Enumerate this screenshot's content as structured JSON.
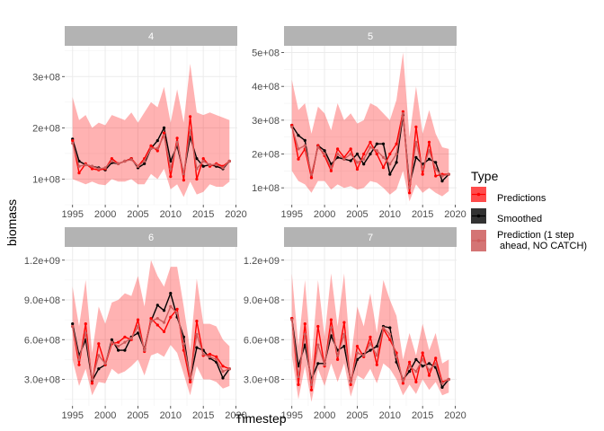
{
  "chart_data": {
    "type": "line",
    "xlabel": "Timestep",
    "ylabel": "biomass",
    "legend": {
      "title": "Type",
      "placement": "right",
      "entries": [
        {
          "label": "Predictions",
          "color": "#ff0000"
        },
        {
          "label": "Smoothed",
          "color": "#000000"
        },
        {
          "label": "Prediction (1 step",
          "label2": " ahead, NO CATCH)",
          "color": "#cd5c5c"
        }
      ]
    },
    "x_ticks": [
      "1995",
      "2000",
      "2005",
      "2010",
      "2015",
      "2020"
    ],
    "xlim": [
      1993.8,
      2020.2
    ],
    "x": [
      1995,
      1996,
      1997,
      1998,
      1999,
      2000,
      2001,
      2002,
      2003,
      2004,
      2005,
      2006,
      2007,
      2008,
      2009,
      2010,
      2011,
      2012,
      2013,
      2014,
      2015,
      2016,
      2017,
      2018,
      2019
    ],
    "band_color": "#ff0000",
    "grid": true,
    "panels": [
      {
        "label": "4",
        "ylim": [
          50000000,
          360000000
        ],
        "y_ticks": [
          100000000,
          200000000,
          300000000
        ],
        "y_tick_labels": [
          "1e+08",
          "2e+08",
          "3e+08"
        ],
        "series": [
          {
            "name": "Smoothed",
            "values": [
              178000000,
              135000000,
              128000000,
              125000000,
              122000000,
              118000000,
              132000000,
              130000000,
              135000000,
              140000000,
              122000000,
              130000000,
              160000000,
              175000000,
              200000000,
              135000000,
              165000000,
              110000000,
              182000000,
              140000000,
              125000000,
              128000000,
              125000000,
              120000000,
              135000000
            ]
          },
          {
            "name": "Predictions",
            "values": [
              175000000,
              112000000,
              130000000,
              120000000,
              118000000,
              120000000,
              140000000,
              130000000,
              135000000,
              140000000,
              125000000,
              140000000,
              165000000,
              155000000,
              190000000,
              105000000,
              180000000,
              98000000,
              222000000,
              100000000,
              140000000,
              125000000,
              130000000,
              125000000,
              135000000
            ]
          },
          {
            "name": "Prediction (1 step ahead, NO CATCH)",
            "values": [
              170000000,
              125000000,
              128000000,
              125000000,
              120000000,
              122000000,
              135000000,
              130000000,
              135000000,
              138000000,
              125000000,
              135000000,
              160000000,
              160000000,
              185000000,
              120000000,
              172000000,
              110000000,
              195000000,
              120000000,
              135000000,
              128000000,
              128000000,
              122000000,
              135000000
            ]
          }
        ],
        "band_lower": [
          100000000,
          95000000,
          90000000,
          95000000,
          90000000,
          88000000,
          100000000,
          95000000,
          95000000,
          100000000,
          90000000,
          90000000,
          110000000,
          100000000,
          120000000,
          80000000,
          90000000,
          65000000,
          95000000,
          70000000,
          75000000,
          90000000,
          85000000,
          85000000,
          95000000
        ],
        "band_upper": [
          260000000,
          215000000,
          225000000,
          200000000,
          210000000,
          205000000,
          225000000,
          220000000,
          215000000,
          230000000,
          210000000,
          230000000,
          250000000,
          240000000,
          280000000,
          210000000,
          275000000,
          210000000,
          325000000,
          230000000,
          225000000,
          230000000,
          225000000,
          220000000,
          215000000
        ]
      },
      {
        "label": "5",
        "ylim": [
          50000000,
          520000000
        ],
        "y_ticks": [
          100000000,
          200000000,
          300000000,
          400000000,
          500000000
        ],
        "y_tick_labels": [
          "1e+08",
          "2e+08",
          "3e+08",
          "4e+08",
          "5e+08"
        ],
        "series": [
          {
            "name": "Smoothed",
            "values": [
              285000000,
              255000000,
              240000000,
              130000000,
              225000000,
              210000000,
              170000000,
              190000000,
              185000000,
              180000000,
              200000000,
              170000000,
              200000000,
              230000000,
              230000000,
              140000000,
              175000000,
              315000000,
              110000000,
              190000000,
              170000000,
              185000000,
              175000000,
              120000000,
              140000000
            ]
          },
          {
            "name": "Predictions",
            "values": [
              285000000,
              185000000,
              215000000,
              130000000,
              225000000,
              195000000,
              150000000,
              215000000,
              190000000,
              215000000,
              155000000,
              200000000,
              235000000,
              200000000,
              160000000,
              200000000,
              230000000,
              325000000,
              85000000,
              280000000,
              140000000,
              235000000,
              135000000,
              140000000,
              140000000
            ]
          },
          {
            "name": "Prediction (1 step ahead, NO CATCH)",
            "values": [
              280000000,
              215000000,
              225000000,
              140000000,
              220000000,
              200000000,
              160000000,
              200000000,
              185000000,
              200000000,
              175000000,
              185000000,
              220000000,
              210000000,
              190000000,
              170000000,
              200000000,
              320000000,
              100000000,
              235000000,
              155000000,
              210000000,
              155000000,
              135000000,
              140000000
            ]
          }
        ],
        "band_lower": [
          150000000,
          120000000,
          110000000,
          85000000,
          120000000,
          120000000,
          95000000,
          110000000,
          100000000,
          105000000,
          95000000,
          100000000,
          120000000,
          115000000,
          100000000,
          80000000,
          95000000,
          150000000,
          60000000,
          110000000,
          85000000,
          100000000,
          85000000,
          75000000,
          90000000
        ],
        "band_upper": [
          420000000,
          330000000,
          350000000,
          260000000,
          340000000,
          320000000,
          270000000,
          350000000,
          300000000,
          320000000,
          290000000,
          300000000,
          350000000,
          340000000,
          320000000,
          300000000,
          360000000,
          500000000,
          250000000,
          400000000,
          260000000,
          330000000,
          260000000,
          220000000,
          215000000
        ]
      },
      {
        "label": "6",
        "ylim": [
          100000000,
          1300000000
        ],
        "y_ticks": [
          300000000,
          600000000,
          900000000,
          1200000000
        ],
        "y_tick_labels": [
          "3.0e+08",
          "6.0e+08",
          "9.0e+08",
          "1.2e+09"
        ],
        "series": [
          {
            "name": "Smoothed",
            "values": [
              720000000,
              480000000,
              600000000,
              290000000,
              380000000,
              410000000,
              600000000,
              520000000,
              520000000,
              620000000,
              650000000,
              530000000,
              740000000,
              860000000,
              820000000,
              950000000,
              770000000,
              620000000,
              300000000,
              540000000,
              520000000,
              460000000,
              430000000,
              310000000,
              380000000
            ]
          },
          {
            "name": "Predictions",
            "values": [
              700000000,
              410000000,
              720000000,
              270000000,
              570000000,
              410000000,
              570000000,
              580000000,
              620000000,
              600000000,
              750000000,
              510000000,
              760000000,
              710000000,
              660000000,
              770000000,
              830000000,
              520000000,
              280000000,
              740000000,
              480000000,
              490000000,
              470000000,
              400000000,
              380000000
            ]
          },
          {
            "name": "Prediction (1 step ahead, NO CATCH)",
            "values": [
              700000000,
              450000000,
              650000000,
              300000000,
              480000000,
              420000000,
              580000000,
              550000000,
              580000000,
              610000000,
              700000000,
              520000000,
              740000000,
              760000000,
              730000000,
              850000000,
              800000000,
              570000000,
              310000000,
              640000000,
              490000000,
              470000000,
              450000000,
              360000000,
              380000000
            ]
          }
        ],
        "band_lower": [
          450000000,
          250000000,
          380000000,
          180000000,
          280000000,
          270000000,
          380000000,
          340000000,
          360000000,
          400000000,
          450000000,
          330000000,
          480000000,
          500000000,
          470000000,
          560000000,
          500000000,
          340000000,
          180000000,
          400000000,
          300000000,
          300000000,
          280000000,
          230000000,
          250000000
        ],
        "band_upper": [
          1000000000,
          700000000,
          1050000000,
          500000000,
          850000000,
          720000000,
          880000000,
          900000000,
          950000000,
          930000000,
          1080000000,
          850000000,
          1200000000,
          1080000000,
          1000000000,
          1150000000,
          1150000000,
          850000000,
          520000000,
          1060000000,
          720000000,
          720000000,
          700000000,
          600000000,
          550000000
        ]
      },
      {
        "label": "7",
        "ylim": [
          100000000,
          1300000000
        ],
        "y_ticks": [
          300000000,
          600000000,
          900000000,
          1200000000
        ],
        "y_tick_labels": [
          "3.0e+08",
          "6.0e+08",
          "9.0e+08",
          "1.2e+09"
        ],
        "series": [
          {
            "name": "Smoothed",
            "values": [
              760000000,
              400000000,
              560000000,
              300000000,
              420000000,
              420000000,
              630000000,
              520000000,
              550000000,
              290000000,
              450000000,
              490000000,
              520000000,
              550000000,
              700000000,
              690000000,
              430000000,
              300000000,
              360000000,
              450000000,
              400000000,
              420000000,
              390000000,
              240000000,
              300000000
            ]
          },
          {
            "name": "Predictions",
            "values": [
              760000000,
              260000000,
              720000000,
              220000000,
              700000000,
              400000000,
              750000000,
              450000000,
              730000000,
              260000000,
              550000000,
              470000000,
              620000000,
              410000000,
              680000000,
              600000000,
              500000000,
              270000000,
              430000000,
              280000000,
              500000000,
              330000000,
              460000000,
              280000000,
              300000000
            ]
          },
          {
            "name": "Prediction (1 step ahead, NO CATCH)",
            "values": [
              750000000,
              320000000,
              640000000,
              260000000,
              560000000,
              410000000,
              690000000,
              480000000,
              640000000,
              280000000,
              500000000,
              480000000,
              570000000,
              480000000,
              690000000,
              640000000,
              470000000,
              290000000,
              400000000,
              360000000,
              450000000,
              370000000,
              420000000,
              270000000,
              300000000
            ]
          }
        ],
        "band_lower": [
          480000000,
          150000000,
          400000000,
          130000000,
          380000000,
          250000000,
          420000000,
          280000000,
          420000000,
          170000000,
          330000000,
          300000000,
          380000000,
          270000000,
          420000000,
          380000000,
          300000000,
          180000000,
          260000000,
          190000000,
          300000000,
          220000000,
          280000000,
          180000000,
          200000000
        ],
        "band_upper": [
          1100000000,
          550000000,
          1050000000,
          430000000,
          1050000000,
          620000000,
          1100000000,
          700000000,
          1100000000,
          450000000,
          850000000,
          700000000,
          950000000,
          650000000,
          1050000000,
          900000000,
          780000000,
          450000000,
          650000000,
          480000000,
          720000000,
          520000000,
          650000000,
          420000000,
          450000000
        ]
      }
    ]
  }
}
